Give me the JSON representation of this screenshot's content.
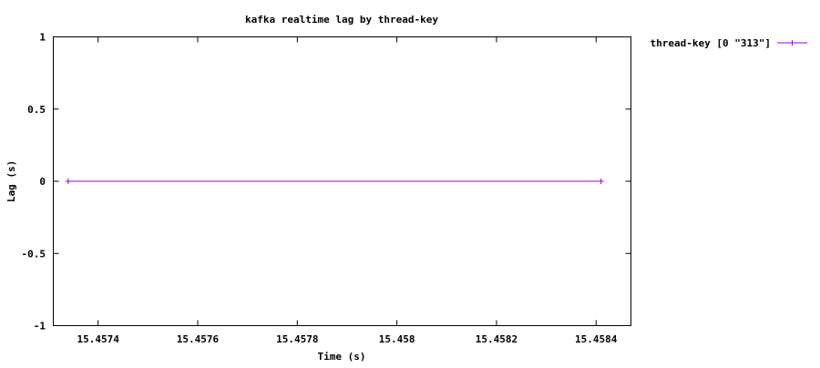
{
  "chart_data": {
    "type": "line",
    "title": "kafka realtime lag by thread-key",
    "xlabel": "Time (s)",
    "ylabel": "Lag (s)",
    "xlim": [
      15.45731,
      15.45847
    ],
    "ylim": [
      -1,
      1
    ],
    "x_ticks": [
      {
        "value": 15.4574,
        "label": "15.4574"
      },
      {
        "value": 15.4576,
        "label": "15.4576"
      },
      {
        "value": 15.4578,
        "label": "15.4578"
      },
      {
        "value": 15.458,
        "label": "15.458"
      },
      {
        "value": 15.4582,
        "label": "15.4582"
      },
      {
        "value": 15.4584,
        "label": "15.4584"
      }
    ],
    "y_ticks": [
      {
        "value": 1,
        "label": "1"
      },
      {
        "value": 0.5,
        "label": "0.5"
      },
      {
        "value": 0,
        "label": "0"
      },
      {
        "value": -0.5,
        "label": "-0.5"
      },
      {
        "value": -1,
        "label": "-1"
      }
    ],
    "grid": false,
    "legend_position": "outside-right",
    "series": [
      {
        "name": "thread-key [0 \"313\"]",
        "color": "#9400d3",
        "marker": "plus",
        "x": [
          15.45734,
          15.45841
        ],
        "y": [
          0,
          0
        ]
      }
    ]
  }
}
